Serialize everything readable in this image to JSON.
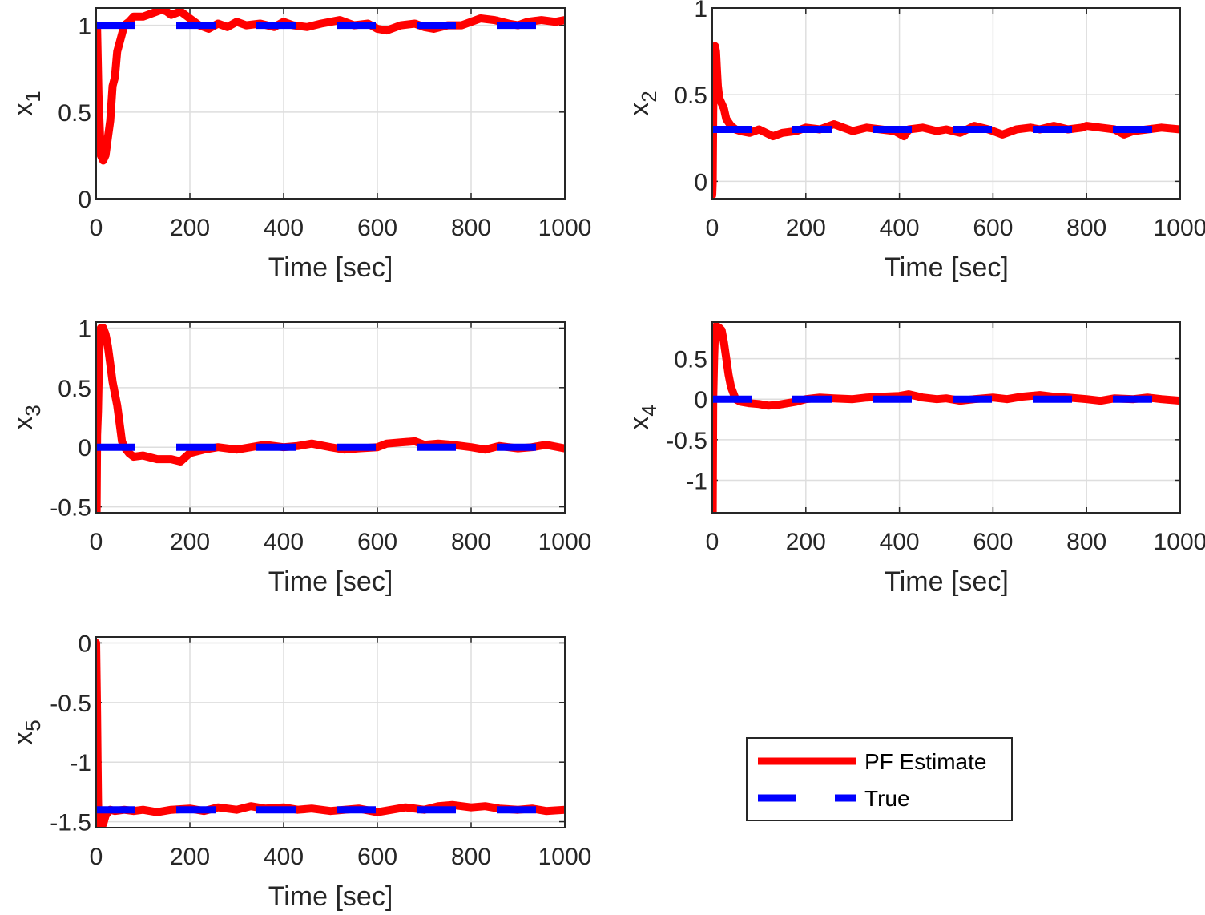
{
  "colors": {
    "estimate": "#ff0000",
    "true": "#0000ff",
    "grid": "#dedede",
    "axis": "#262626",
    "background": "#ffffff"
  },
  "legend": {
    "entries": [
      "PF Estimate",
      "True"
    ],
    "location": "bottom-right"
  },
  "chart_data": [
    {
      "type": "line",
      "xlabel": "Time [sec]",
      "ylabel_base": "x",
      "ylabel_sub": "1",
      "xlim": [
        0,
        1000
      ],
      "ylim": [
        0,
        1.1
      ],
      "xticks": [
        "0",
        "200",
        "400",
        "600",
        "800",
        "1000"
      ],
      "yticks": [
        {
          "value": 0,
          "label": "0"
        },
        {
          "value": 0.5,
          "label": "0.5"
        },
        {
          "value": 1,
          "label": "1"
        }
      ],
      "grid": true,
      "series": [
        {
          "name": "PF Estimate",
          "style": "solid",
          "x": [
            0,
            2,
            5,
            10,
            15,
            20,
            25,
            30,
            35,
            40,
            45,
            50,
            55,
            60,
            70,
            80,
            100,
            120,
            140,
            150,
            160,
            180,
            200,
            220,
            240,
            260,
            280,
            300,
            320,
            350,
            380,
            400,
            420,
            450,
            480,
            500,
            520,
            550,
            580,
            600,
            620,
            650,
            680,
            700,
            720,
            750,
            780,
            800,
            820,
            850,
            880,
            900,
            920,
            950,
            980,
            1000
          ],
          "y": [
            1.0,
            0.98,
            0.6,
            0.25,
            0.22,
            0.25,
            0.35,
            0.45,
            0.65,
            0.7,
            0.85,
            0.9,
            0.95,
            1.0,
            1.02,
            1.05,
            1.05,
            1.07,
            1.09,
            1.08,
            1.06,
            1.08,
            1.04,
            1.0,
            0.98,
            1.01,
            0.99,
            1.02,
            1.0,
            1.01,
            0.99,
            1.02,
            1.0,
            0.99,
            1.01,
            1.02,
            1.03,
            1.0,
            1.01,
            0.98,
            0.97,
            1.0,
            1.01,
            0.99,
            0.98,
            1.0,
            1.0,
            1.02,
            1.04,
            1.03,
            1.01,
            1.0,
            1.02,
            1.03,
            1.02,
            1.03
          ]
        },
        {
          "name": "True",
          "style": "dashed",
          "x": [
            0,
            1000
          ],
          "y": [
            1.0,
            1.0
          ]
        }
      ]
    },
    {
      "type": "line",
      "xlabel": "Time [sec]",
      "ylabel_base": "x",
      "ylabel_sub": "2",
      "xlim": [
        0,
        1000
      ],
      "ylim": [
        -0.1,
        1
      ],
      "xticks": [
        "0",
        "200",
        "400",
        "600",
        "800",
        "1000"
      ],
      "yticks": [
        {
          "value": 0,
          "label": "0"
        },
        {
          "value": 0.5,
          "label": "0.5"
        },
        {
          "value": 1,
          "label": "1"
        }
      ],
      "grid": true,
      "series": [
        {
          "name": "PF Estimate",
          "style": "solid",
          "x": [
            0,
            1,
            2,
            4,
            6,
            8,
            10,
            12,
            15,
            20,
            25,
            30,
            40,
            50,
            60,
            80,
            100,
            130,
            150,
            180,
            200,
            230,
            260,
            300,
            330,
            360,
            390,
            410,
            420,
            450,
            480,
            500,
            530,
            560,
            590,
            600,
            620,
            650,
            680,
            700,
            730,
            760,
            790,
            800,
            830,
            860,
            880,
            900,
            930,
            960,
            1000
          ],
          "y": [
            -0.08,
            0.0,
            0.4,
            0.7,
            0.78,
            0.75,
            0.65,
            0.55,
            0.48,
            0.45,
            0.42,
            0.36,
            0.32,
            0.3,
            0.29,
            0.28,
            0.3,
            0.26,
            0.28,
            0.29,
            0.31,
            0.3,
            0.33,
            0.29,
            0.31,
            0.3,
            0.29,
            0.26,
            0.3,
            0.31,
            0.29,
            0.3,
            0.28,
            0.32,
            0.3,
            0.29,
            0.27,
            0.3,
            0.31,
            0.3,
            0.32,
            0.3,
            0.31,
            0.32,
            0.31,
            0.3,
            0.27,
            0.29,
            0.3,
            0.31,
            0.3
          ]
        },
        {
          "name": "True",
          "style": "dashed",
          "x": [
            0,
            1000
          ],
          "y": [
            0.3,
            0.3
          ]
        }
      ]
    },
    {
      "type": "line",
      "xlabel": "Time [sec]",
      "ylabel_base": "x",
      "ylabel_sub": "3",
      "xlim": [
        0,
        1000
      ],
      "ylim": [
        -0.55,
        1.05
      ],
      "xticks": [
        "0",
        "200",
        "400",
        "600",
        "800",
        "1000"
      ],
      "yticks": [
        {
          "value": -0.5,
          "label": "-0.5"
        },
        {
          "value": 0,
          "label": "0"
        },
        {
          "value": 0.5,
          "label": "0.5"
        },
        {
          "value": 1,
          "label": "1"
        }
      ],
      "grid": true,
      "series": [
        {
          "name": "PF Estimate",
          "style": "solid",
          "x": [
            0,
            1,
            2,
            4,
            6,
            8,
            10,
            15,
            20,
            25,
            30,
            35,
            40,
            45,
            50,
            55,
            60,
            70,
            80,
            100,
            130,
            160,
            180,
            200,
            230,
            260,
            300,
            330,
            360,
            400,
            430,
            460,
            500,
            530,
            560,
            600,
            620,
            650,
            680,
            700,
            730,
            760,
            800,
            830,
            860,
            900,
            930,
            960,
            1000
          ],
          "y": [
            -0.3,
            -0.55,
            0.1,
            0.3,
            0.7,
            0.95,
            1.0,
            1.0,
            0.95,
            0.85,
            0.7,
            0.55,
            0.45,
            0.35,
            0.2,
            0.05,
            0.0,
            -0.05,
            -0.08,
            -0.07,
            -0.1,
            -0.1,
            -0.12,
            -0.05,
            -0.02,
            0.0,
            -0.02,
            0.0,
            0.02,
            0.0,
            0.01,
            0.03,
            0.0,
            -0.02,
            -0.01,
            0.0,
            0.03,
            0.04,
            0.05,
            0.02,
            0.03,
            0.02,
            0.0,
            -0.02,
            0.01,
            -0.01,
            0.0,
            0.02,
            -0.01
          ]
        },
        {
          "name": "True",
          "style": "dashed",
          "x": [
            0,
            1000
          ],
          "y": [
            0.0,
            0.0
          ]
        }
      ]
    },
    {
      "type": "line",
      "xlabel": "Time [sec]",
      "ylabel_base": "x",
      "ylabel_sub": "4",
      "xlim": [
        0,
        1000
      ],
      "ylim": [
        -1.4,
        0.95
      ],
      "xticks": [
        "0",
        "200",
        "400",
        "600",
        "800",
        "1000"
      ],
      "yticks": [
        {
          "value": -1,
          "label": "-1"
        },
        {
          "value": -0.5,
          "label": "-0.5"
        },
        {
          "value": 0,
          "label": "0"
        },
        {
          "value": 0.5,
          "label": "0.5"
        }
      ],
      "grid": true,
      "series": [
        {
          "name": "PF Estimate",
          "style": "solid",
          "x": [
            0,
            1,
            2,
            4,
            6,
            8,
            10,
            15,
            20,
            25,
            30,
            35,
            40,
            50,
            60,
            80,
            100,
            120,
            140,
            160,
            180,
            200,
            230,
            260,
            300,
            330,
            360,
            400,
            420,
            450,
            480,
            500,
            530,
            560,
            600,
            630,
            660,
            700,
            730,
            760,
            800,
            830,
            860,
            900,
            930,
            960,
            1000
          ],
          "y": [
            -0.9,
            -1.4,
            0.0,
            0.5,
            0.85,
            0.9,
            0.9,
            0.88,
            0.85,
            0.7,
            0.5,
            0.3,
            0.15,
            0.0,
            -0.03,
            -0.05,
            -0.06,
            -0.08,
            -0.07,
            -0.05,
            -0.03,
            0.0,
            0.02,
            0.01,
            0.0,
            0.02,
            0.03,
            0.04,
            0.06,
            0.02,
            0.0,
            0.01,
            -0.02,
            0.0,
            0.02,
            0.0,
            0.03,
            0.05,
            0.03,
            0.02,
            0.0,
            -0.02,
            0.01,
            0.0,
            0.02,
            0.0,
            -0.02
          ]
        },
        {
          "name": "True",
          "style": "dashed",
          "x": [
            0,
            1000
          ],
          "y": [
            0.0,
            0.0
          ]
        }
      ]
    },
    {
      "type": "line",
      "xlabel": "Time [sec]",
      "ylabel_base": "x",
      "ylabel_sub": "5",
      "xlim": [
        0,
        1000
      ],
      "ylim": [
        -1.55,
        0.05
      ],
      "xticks": [
        "0",
        "200",
        "400",
        "600",
        "800",
        "1000"
      ],
      "yticks": [
        {
          "value": -1.5,
          "label": "-1.5"
        },
        {
          "value": -1,
          "label": "-1"
        },
        {
          "value": -0.5,
          "label": "-0.5"
        },
        {
          "value": 0,
          "label": "0"
        }
      ],
      "grid": true,
      "series": [
        {
          "name": "PF Estimate",
          "style": "solid",
          "x": [
            0,
            1,
            2,
            3,
            4,
            5,
            6,
            8,
            10,
            15,
            20,
            25,
            30,
            40,
            60,
            80,
            100,
            130,
            160,
            200,
            230,
            260,
            300,
            330,
            360,
            400,
            430,
            460,
            500,
            530,
            560,
            600,
            630,
            660,
            700,
            730,
            760,
            800,
            830,
            860,
            900,
            930,
            960,
            1000
          ],
          "y": [
            0.0,
            -0.3,
            -0.6,
            -1.0,
            -1.3,
            -1.5,
            -1.53,
            -1.52,
            -1.5,
            -1.52,
            -1.45,
            -1.42,
            -1.4,
            -1.41,
            -1.4,
            -1.41,
            -1.4,
            -1.42,
            -1.4,
            -1.39,
            -1.41,
            -1.38,
            -1.4,
            -1.37,
            -1.39,
            -1.38,
            -1.4,
            -1.39,
            -1.41,
            -1.4,
            -1.39,
            -1.42,
            -1.4,
            -1.38,
            -1.4,
            -1.37,
            -1.36,
            -1.38,
            -1.37,
            -1.39,
            -1.4,
            -1.39,
            -1.41,
            -1.4
          ]
        },
        {
          "name": "True",
          "style": "dashed",
          "x": [
            0,
            1000
          ],
          "y": [
            -1.4,
            -1.4
          ]
        }
      ]
    }
  ]
}
